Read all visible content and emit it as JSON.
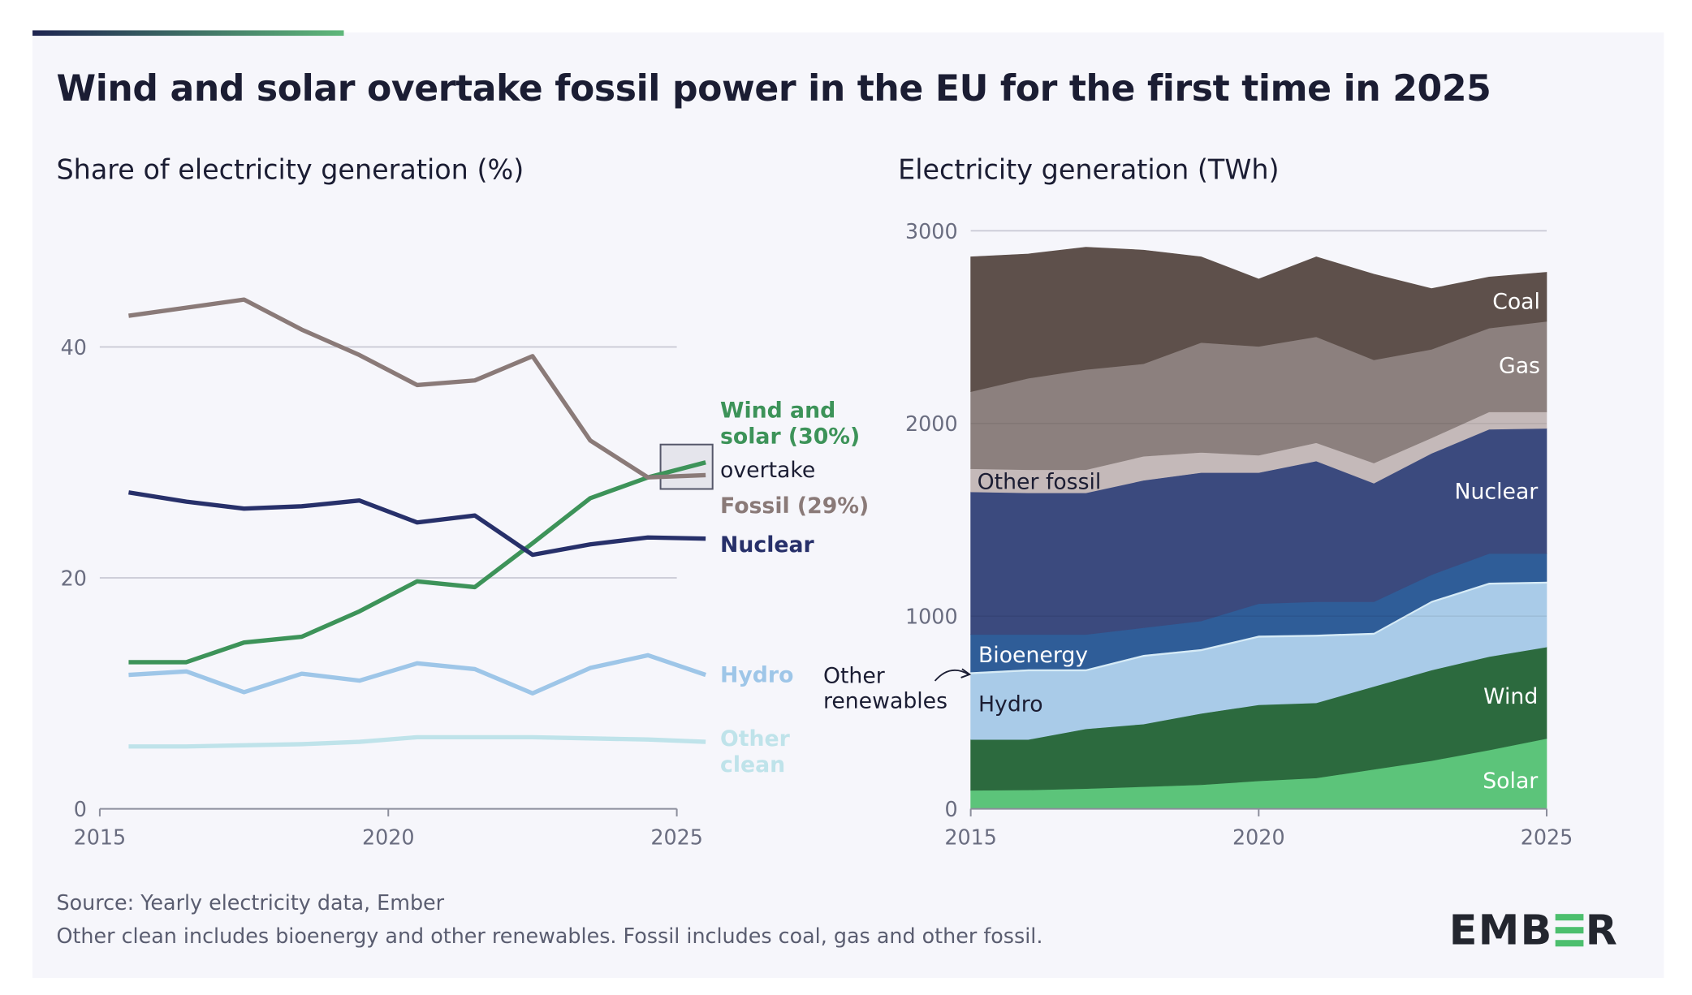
{
  "title": "Wind and solar overtake fossil power in the EU for the first time in 2025",
  "footer": {
    "source": "Source: Yearly electricity data, Ember",
    "note": "Other clean includes bioenergy and other renewables. Fossil includes coal, gas and other fossil."
  },
  "logo": "EMBER",
  "colors": {
    "accent_bar_start": "#1e2450",
    "accent_bar_end": "#5fb87a",
    "background": "#f6f6fb"
  },
  "chart_data": [
    {
      "type": "line",
      "title": "Share of electricity generation (%)",
      "x": [
        2015,
        2016,
        2017,
        2018,
        2019,
        2020,
        2021,
        2022,
        2023,
        2024,
        2025
      ],
      "xticks": [
        "2015",
        "2020",
        "2025"
      ],
      "yticks": [
        "0",
        "20",
        "40"
      ],
      "ylim": [
        0,
        45
      ],
      "grid": true,
      "series": [
        {
          "name": "Fossil (29%)",
          "color": "#8a7a78",
          "values": [
            42.7,
            43.4,
            44.1,
            41.5,
            39.3,
            36.7,
            37.1,
            39.2,
            31.9,
            28.7,
            28.9
          ]
        },
        {
          "name": "Nuclear",
          "color": "#27306a",
          "values": [
            27.4,
            26.6,
            26.0,
            26.2,
            26.7,
            24.8,
            25.4,
            22.0,
            22.9,
            23.5,
            23.4
          ]
        },
        {
          "name": "Wind and solar (30%)",
          "label_lines": [
            "Wind and",
            "solar (30%)"
          ],
          "color": "#3d9359",
          "values": [
            12.7,
            12.7,
            14.4,
            14.9,
            17.1,
            19.7,
            19.2,
            23.0,
            26.9,
            28.7,
            30.0
          ]
        },
        {
          "name": "Hydro",
          "color": "#9ec6e8",
          "values": [
            11.6,
            11.9,
            10.1,
            11.7,
            11.1,
            12.6,
            12.1,
            10.0,
            12.2,
            13.3,
            11.6
          ]
        },
        {
          "name": "Other clean",
          "label_lines": [
            "Other",
            "clean"
          ],
          "color": "#bfe3ea",
          "values": [
            5.4,
            5.4,
            5.5,
            5.6,
            5.8,
            6.2,
            6.2,
            6.2,
            6.1,
            6.0,
            5.8
          ]
        }
      ],
      "annotation": "overtake"
    },
    {
      "type": "area",
      "stacked": true,
      "title": "Electricity generation (TWh)",
      "x": [
        2015,
        2016,
        2017,
        2018,
        2019,
        2020,
        2021,
        2022,
        2023,
        2024,
        2025
      ],
      "xticks": [
        "2015",
        "2020",
        "2025"
      ],
      "yticks": [
        "0",
        "1000",
        "2000",
        "3000"
      ],
      "ylim": [
        0,
        3000
      ],
      "grid": true,
      "series": [
        {
          "name": "Solar",
          "color": "#5cc47a",
          "values": [
            96,
            98,
            105,
            115,
            125,
            145,
            160,
            205,
            250,
            305,
            365
          ]
        },
        {
          "name": "Wind",
          "color": "#2c6a3e",
          "values": [
            264,
            262,
            310,
            325,
            370,
            395,
            390,
            430,
            470,
            485,
            475
          ]
        },
        {
          "name": "Hydro",
          "color": "#a9cbe8",
          "values": [
            340,
            355,
            300,
            350,
            325,
            350,
            345,
            270,
            350,
            375,
            330
          ]
        },
        {
          "name": "Other renewables",
          "label_lines": [
            "Other",
            "renewables"
          ],
          "color": "#d6ebf6",
          "values": [
            10,
            10,
            10,
            10,
            10,
            10,
            10,
            10,
            10,
            10,
            10
          ]
        },
        {
          "name": "Bioenergy",
          "color": "#2f5d98",
          "values": [
            195,
            180,
            180,
            140,
            145,
            165,
            170,
            160,
            135,
            150,
            145
          ]
        },
        {
          "name": "Nuclear",
          "color": "#3b4a7e",
          "values": [
            740,
            735,
            735,
            765,
            770,
            680,
            730,
            615,
            630,
            645,
            650
          ]
        },
        {
          "name": "Other fossil",
          "color": "#c4b9b9",
          "values": [
            120,
            120,
            120,
            125,
            105,
            90,
            95,
            105,
            80,
            90,
            85
          ]
        },
        {
          "name": "Gas",
          "color": "#8c807e",
          "values": [
            400,
            475,
            520,
            480,
            570,
            565,
            550,
            535,
            460,
            435,
            470
          ]
        },
        {
          "name": "Coal",
          "color": "#5e504b",
          "values": [
            700,
            645,
            635,
            590,
            445,
            350,
            415,
            445,
            315,
            265,
            255
          ]
        }
      ]
    }
  ]
}
